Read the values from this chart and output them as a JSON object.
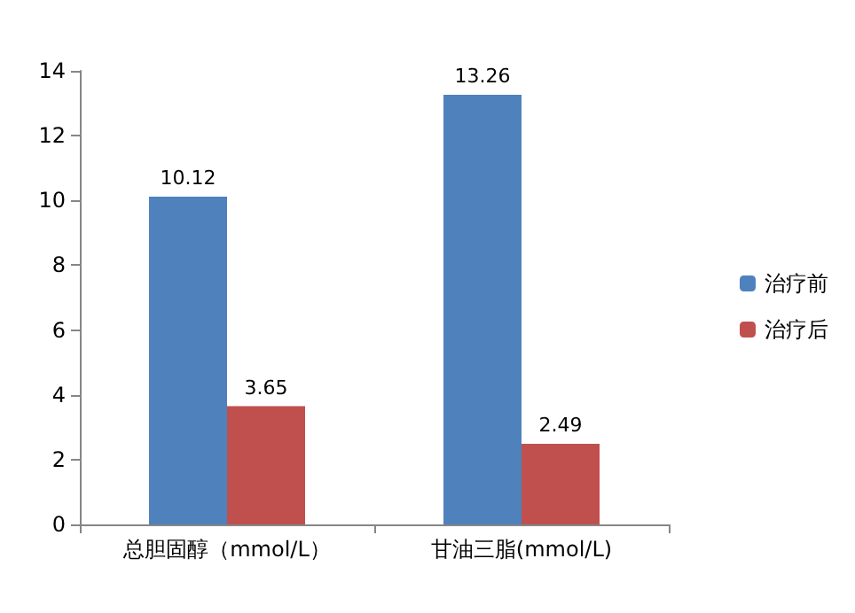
{
  "chart_data": {
    "type": "bar",
    "categories": [
      "总胆固醇（mmol/L）",
      "甘油三脂(mmol/L)"
    ],
    "series": [
      {
        "name": "治疗前",
        "color": "#4f81bd",
        "values": [
          10.12,
          13.26
        ]
      },
      {
        "name": "治疗后",
        "color": "#c0504d",
        "values": [
          3.65,
          2.49
        ]
      }
    ],
    "ylim": [
      0,
      14
    ],
    "yticks": [
      0,
      2,
      4,
      6,
      8,
      10,
      12,
      14
    ],
    "grid": false,
    "legend": "right",
    "data_labels": true
  }
}
